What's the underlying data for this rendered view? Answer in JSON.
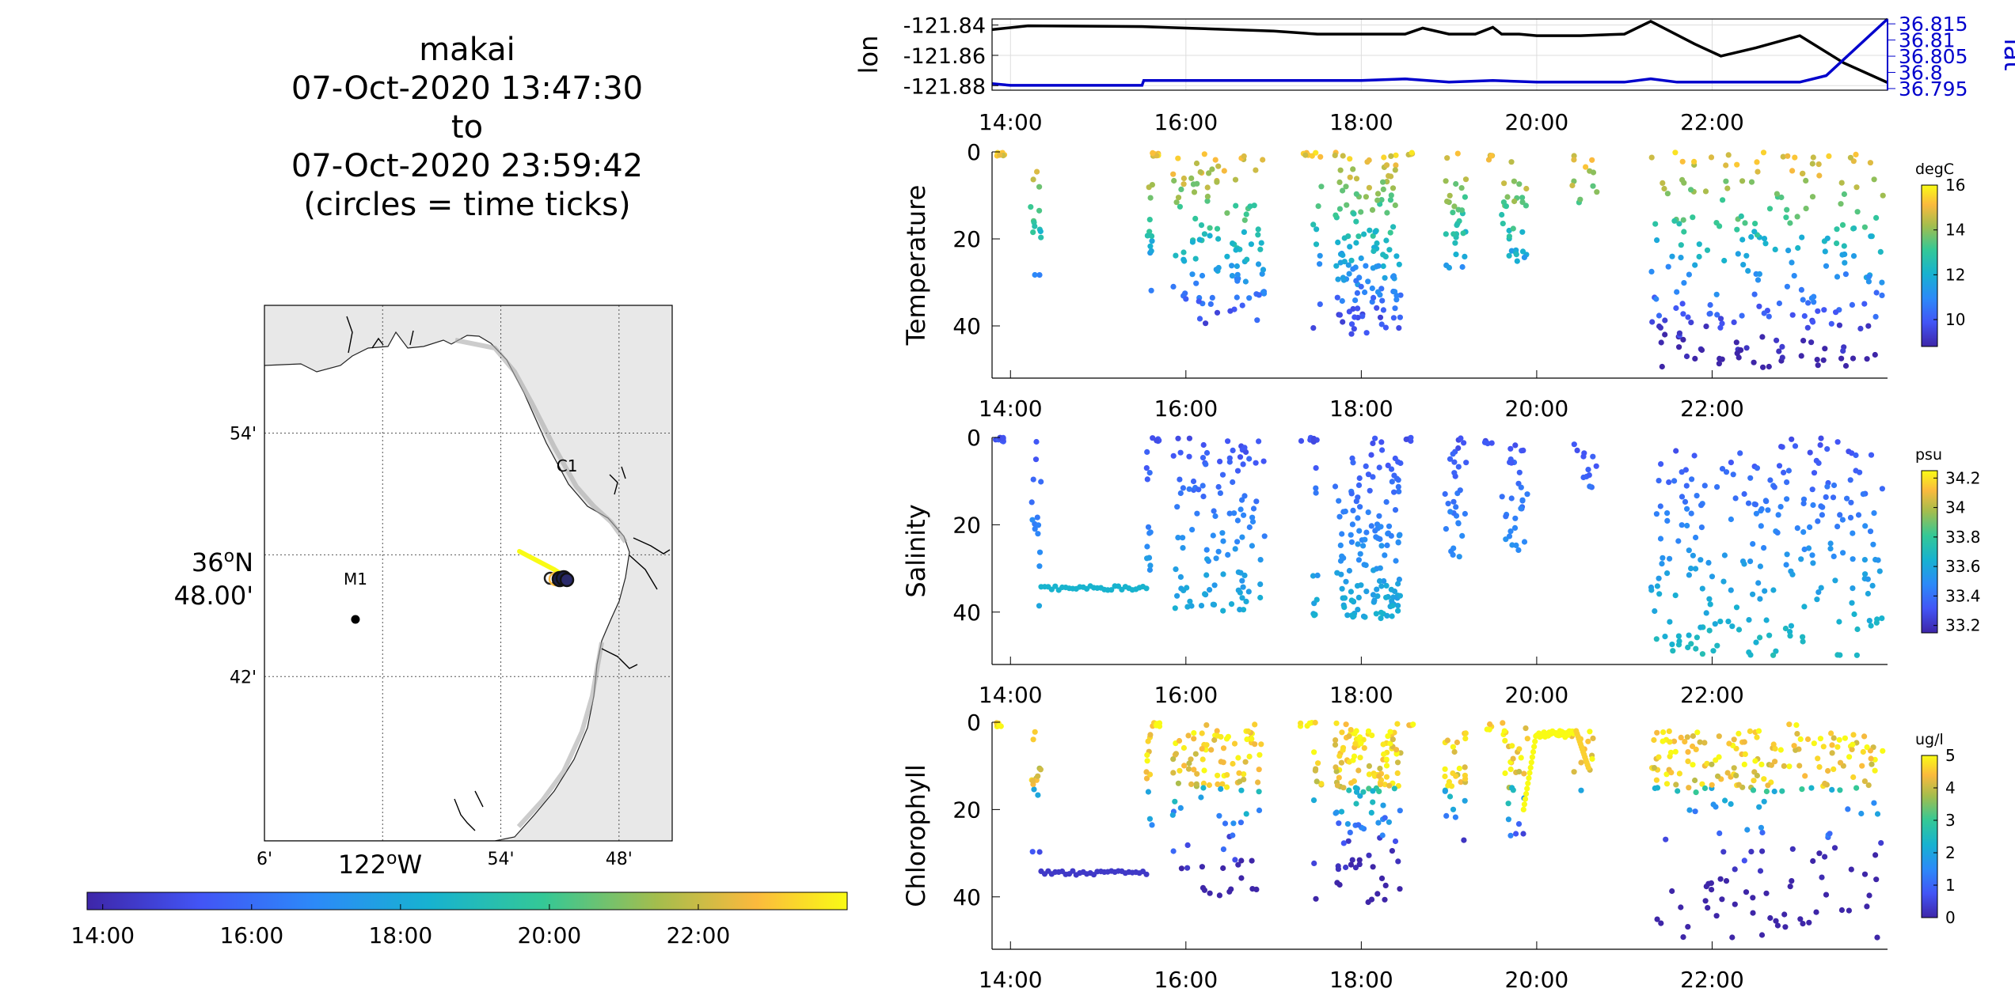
{
  "header": {
    "title_lines": [
      "makai",
      "07-Oct-2020 13:47:30",
      "to",
      "07-Oct-2020 23:59:42",
      "(circles = time ticks)"
    ]
  },
  "map": {
    "lat_ticks": [
      {
        "label": "54'",
        "lat": 36.9
      },
      {
        "label": "42'",
        "lat": 36.7
      }
    ],
    "lat_center_label": [
      "36ON",
      "48.00'"
    ],
    "lat_center_value": 36.8,
    "lon_ticks": [
      {
        "label": "6'",
        "lon": -122.1
      },
      {
        "label": "54'",
        "lon": -121.9
      },
      {
        "label": "48'",
        "lon": -121.8
      }
    ],
    "lon_center_label": "122OW",
    "lon_center_value": -122.0,
    "lat_range": [
      36.565,
      37.005
    ],
    "lon_range": [
      -122.1,
      -121.755
    ],
    "stations": [
      {
        "name": "M1",
        "lat": 36.747,
        "lon": -122.023
      },
      {
        "name": "C1",
        "lat": 36.797,
        "lon": -121.844
      }
    ],
    "land_color": "#e8e8e8"
  },
  "time_colorbar": {
    "tick_labels": [
      "14:00",
      "16:00",
      "18:00",
      "20:00",
      "22:00"
    ],
    "tick_hours": [
      14,
      16,
      18,
      20,
      22
    ],
    "range_hours": [
      13.79,
      24.0
    ]
  },
  "chart_data": [
    {
      "type": "line",
      "name_left": "lon",
      "name_right": "lat",
      "x_label_ticks": [
        "14:00",
        "16:00",
        "18:00",
        "20:00",
        "22:00"
      ],
      "x_hours": [
        14,
        16,
        18,
        20,
        22
      ],
      "xlim_hours": [
        13.79,
        24.0
      ],
      "y_left_ticks": [
        -121.84,
        -121.86,
        -121.88
      ],
      "y_left_tick_labels": [
        "-121.84",
        "-121.86",
        "-121.88"
      ],
      "y_left_lim": [
        -121.883,
        -121.836
      ],
      "y_right_ticks": [
        36.795,
        36.8,
        36.805,
        36.81,
        36.815
      ],
      "y_right_tick_labels": [
        "36.795",
        "36.8",
        "36.805",
        "36.81",
        "36.815"
      ],
      "y_right_lim": [
        36.7945,
        36.8165
      ],
      "series": [
        {
          "name": "lon",
          "color": "#000000",
          "axis": "left",
          "x": [
            13.79,
            14.2,
            15.5,
            16.0,
            17.0,
            17.5,
            18.0,
            18.5,
            18.7,
            19.0,
            19.3,
            19.5,
            19.6,
            19.8,
            20.0,
            20.5,
            21.0,
            21.3,
            21.8,
            22.1,
            22.5,
            23.0,
            23.5,
            24.0
          ],
          "y": [
            -121.843,
            -121.8405,
            -121.841,
            -121.842,
            -121.844,
            -121.846,
            -121.846,
            -121.846,
            -121.842,
            -121.846,
            -121.846,
            -121.8415,
            -121.846,
            -121.846,
            -121.847,
            -121.847,
            -121.846,
            -121.8375,
            -121.8525,
            -121.8605,
            -121.855,
            -121.847,
            -121.865,
            -121.878
          ]
        },
        {
          "name": "lat",
          "color": "#0000cc",
          "axis": "right",
          "x": [
            13.79,
            14.0,
            15.5,
            15.52,
            16.0,
            18.0,
            18.5,
            19.0,
            19.5,
            20.0,
            21.0,
            21.3,
            21.6,
            22.0,
            23.0,
            23.3,
            24.0
          ],
          "y": [
            36.7965,
            36.796,
            36.796,
            36.7975,
            36.7975,
            36.7975,
            36.798,
            36.797,
            36.7975,
            36.797,
            36.797,
            36.798,
            36.797,
            36.797,
            36.797,
            36.799,
            36.8165
          ]
        }
      ]
    },
    {
      "type": "scatter",
      "ylabel": "Temperature",
      "colorbar_label": "degC",
      "colorbar_ticks": [
        10,
        12,
        14,
        16
      ],
      "clim": [
        8.8,
        16
      ],
      "y_ticks": [
        0,
        20,
        40
      ],
      "ylim": [
        0,
        52
      ],
      "y_reversed": true,
      "x_label_ticks": [
        "14:00",
        "16:00",
        "18:00",
        "20:00",
        "22:00"
      ],
      "x_hours": [
        14,
        16,
        18,
        20,
        22
      ],
      "xlim_hours": [
        13.79,
        24.0
      ]
    },
    {
      "type": "scatter",
      "ylabel": "Salinity",
      "colorbar_label": "psu",
      "colorbar_ticks": [
        33.2,
        33.4,
        33.6,
        33.8,
        34,
        34.2
      ],
      "colorbar_tick_labels": [
        "33.2",
        "33.4",
        "33.6",
        "33.8",
        "34",
        "34.2"
      ],
      "clim": [
        33.15,
        34.25
      ],
      "y_ticks": [
        0,
        20,
        40
      ],
      "ylim": [
        0,
        52
      ],
      "y_reversed": true,
      "x_label_ticks": [
        "14:00",
        "16:00",
        "18:00",
        "20:00",
        "22:00"
      ],
      "x_hours": [
        14,
        16,
        18,
        20,
        22
      ],
      "xlim_hours": [
        13.79,
        24.0
      ]
    },
    {
      "type": "scatter",
      "ylabel": "Chlorophyll",
      "colorbar_label": "ug/l",
      "colorbar_ticks": [
        0,
        1,
        2,
        3,
        4,
        5
      ],
      "clim": [
        0,
        5
      ],
      "y_ticks": [
        0,
        20,
        40
      ],
      "ylim": [
        0,
        52
      ],
      "y_reversed": true,
      "x_label_ticks": [
        "14:00",
        "16:00",
        "18:00",
        "20:00",
        "22:00"
      ],
      "x_hours": [
        14,
        16,
        18,
        20,
        22
      ],
      "xlim_hours": [
        13.79,
        24.0
      ]
    }
  ]
}
